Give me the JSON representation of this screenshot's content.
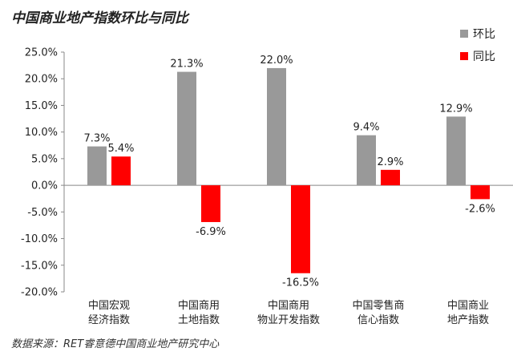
{
  "title": "中国商业地产指数环比与同比",
  "source": "数据来源：RET睿意德中国商业地产研究中心",
  "chart_data": {
    "type": "bar",
    "categories": [
      [
        "中国宏观",
        "经济指数"
      ],
      [
        "中国商用",
        "土地指数"
      ],
      [
        "中国商用",
        "物业开发指数"
      ],
      [
        "中国零售商",
        "信心指数"
      ],
      [
        "中国商业",
        "地产指数"
      ]
    ],
    "series": [
      {
        "name": "环比",
        "color": "#999999",
        "values": [
          7.3,
          21.3,
          22.0,
          9.4,
          12.9
        ],
        "labels": [
          "7.3%",
          "21.3%",
          "22.0%",
          "9.4%",
          "12.9%"
        ]
      },
      {
        "name": "同比",
        "color": "#ff0000",
        "values": [
          5.4,
          -6.9,
          -16.5,
          2.9,
          -2.6
        ],
        "labels": [
          "5.4%",
          "-6.9%",
          "-16.5%",
          "2.9%",
          "-2.6%"
        ]
      }
    ],
    "yticks": [
      25,
      20,
      15,
      10,
      5,
      0,
      -5,
      -10,
      -15,
      -20
    ],
    "ytick_labels": [
      "25.0%",
      "20.0%",
      "15.0%",
      "10.0%",
      "5.0%",
      "0.0%",
      "-5.0%",
      "-10.0%",
      "-15.0%",
      "-20.0%"
    ],
    "ylim": [
      -20,
      25
    ],
    "grid": false,
    "legend_position": "top-right"
  }
}
